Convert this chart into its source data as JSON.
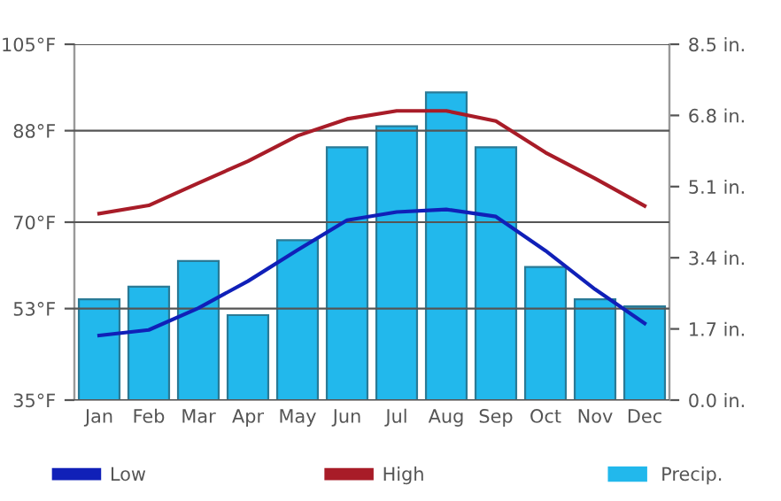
{
  "chart_data": {
    "type": "line",
    "categories": [
      "Jan",
      "Feb",
      "Mar",
      "Apr",
      "May",
      "Jun",
      "Jul",
      "Aug",
      "Sep",
      "Oct",
      "Nov",
      "Dec"
    ],
    "series": [
      {
        "name": "Low",
        "color": "#1020b8",
        "values": [
          47.7,
          48.8,
          53.1,
          58.4,
          64.5,
          70.4,
          72.0,
          72.5,
          71.1,
          64.4,
          56.8,
          50.1
        ]
      },
      {
        "name": "High",
        "color": "#a81c28",
        "values": [
          71.7,
          73.3,
          77.7,
          82.0,
          87.0,
          90.3,
          91.9,
          91.9,
          89.9,
          83.7,
          78.6,
          73.2
        ]
      },
      {
        "name": "Precip.",
        "type": "bar",
        "axis": "y2",
        "color": "#22b8ec",
        "values": [
          2.41,
          2.71,
          3.32,
          2.03,
          3.82,
          6.04,
          6.54,
          7.35,
          6.04,
          3.18,
          2.41,
          2.24
        ]
      }
    ],
    "ylim": [
      35,
      105
    ],
    "yticks": [
      {
        "value": 35,
        "label": "35°F"
      },
      {
        "value": 53,
        "label": "53°F"
      },
      {
        "value": 70,
        "label": "70°F"
      },
      {
        "value": 88,
        "label": "88°F"
      },
      {
        "value": 105,
        "label": "105°F"
      }
    ],
    "y2lim": [
      0,
      8.5
    ],
    "y2ticks": [
      {
        "value": 0,
        "label": "0.0 in."
      },
      {
        "value": 1.7,
        "label": "1.7 in."
      },
      {
        "value": 3.4,
        "label": "3.4 in."
      },
      {
        "value": 5.1,
        "label": "5.1 in."
      },
      {
        "value": 6.8,
        "label": "6.8 in."
      },
      {
        "value": 8.5,
        "label": "8.5 in."
      }
    ],
    "grid": "y",
    "legend": "bottom",
    "marker": "none",
    "line_style": "solid"
  }
}
